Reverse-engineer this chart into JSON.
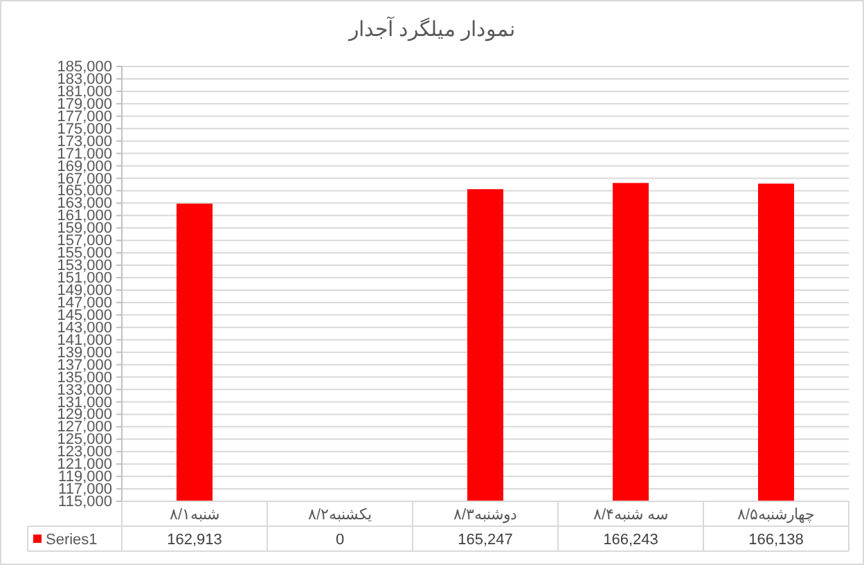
{
  "chart_data": {
    "type": "bar",
    "title": "نمودار میلگرد آجدار",
    "categories": [
      "شنبه۸/۱",
      "یکشنبه۸/۲",
      "دوشنبه۸/۳",
      "سه شنبه۸/۴",
      "چهارشنبه۸/۵"
    ],
    "series": [
      {
        "name": "Series1",
        "color": "#ff0000",
        "values": [
          162913,
          null,
          165247,
          166243,
          166138
        ],
        "value_labels": [
          "162,913",
          "0",
          "165,247",
          "166,243",
          "166,138"
        ]
      }
    ],
    "ylim": [
      115000,
      185000
    ],
    "yticks": [
      {
        "value": 115000,
        "label": "115,000"
      },
      {
        "value": 117000,
        "label": "117,000"
      },
      {
        "value": 119000,
        "label": "119,000"
      },
      {
        "value": 121000,
        "label": "121,000"
      },
      {
        "value": 123000,
        "label": "123,000"
      },
      {
        "value": 125000,
        "label": "125,000"
      },
      {
        "value": 127000,
        "label": "127,000"
      },
      {
        "value": 129000,
        "label": "129,000"
      },
      {
        "value": 131000,
        "label": "131,000"
      },
      {
        "value": 133000,
        "label": "133,000"
      },
      {
        "value": 135000,
        "label": "135,000"
      },
      {
        "value": 137000,
        "label": "137,000"
      },
      {
        "value": 139000,
        "label": "139,000"
      },
      {
        "value": 141000,
        "label": "141,000"
      },
      {
        "value": 143000,
        "label": "143,000"
      },
      {
        "value": 145000,
        "label": "145,000"
      },
      {
        "value": 147000,
        "label": "147,000"
      },
      {
        "value": 149000,
        "label": "149,000"
      },
      {
        "value": 151000,
        "label": "151,000"
      },
      {
        "value": 153000,
        "label": "153,000"
      },
      {
        "value": 155000,
        "label": "155,000"
      },
      {
        "value": 157000,
        "label": "157,000"
      },
      {
        "value": 159000,
        "label": "159,000"
      },
      {
        "value": 161000,
        "label": "161,000"
      },
      {
        "value": 163000,
        "label": "163,000"
      },
      {
        "value": 165000,
        "label": "165,000"
      },
      {
        "value": 167000,
        "label": "167,000"
      },
      {
        "value": 169000,
        "label": "169,000"
      },
      {
        "value": 171000,
        "label": "171,000"
      },
      {
        "value": 173000,
        "label": "173,000"
      },
      {
        "value": 175000,
        "label": "175,000"
      },
      {
        "value": 177000,
        "label": "177,000"
      },
      {
        "value": 179000,
        "label": "179,000"
      },
      {
        "value": 181000,
        "label": "181,000"
      },
      {
        "value": 183000,
        "label": "183,000"
      },
      {
        "value": 185000,
        "label": "185,000"
      }
    ],
    "grid": "y",
    "legend": "bottom"
  }
}
